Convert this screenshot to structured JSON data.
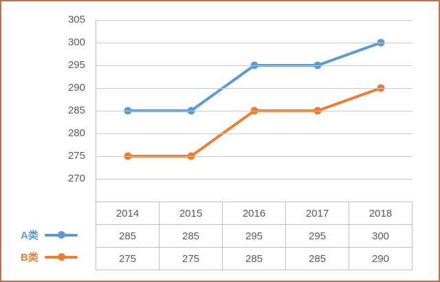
{
  "chart_data": {
    "type": "line",
    "categories": [
      "2014",
      "2015",
      "2016",
      "2017",
      "2018"
    ],
    "series": [
      {
        "name": "A类",
        "values": [
          285,
          285,
          295,
          295,
          300
        ],
        "color": "#5B9BD5"
      },
      {
        "name": "B类",
        "values": [
          275,
          275,
          285,
          285,
          290
        ],
        "color": "#ED7D31"
      }
    ],
    "title": "",
    "xlabel": "",
    "ylabel": "",
    "ylim": [
      265,
      305
    ],
    "yticks": [
      270,
      275,
      280,
      285,
      290,
      295,
      300,
      305
    ],
    "grid": "horizontal",
    "legend_position": "left-of-table-rows",
    "data_table": true
  },
  "colors": {
    "gridline": "#C8C8C8",
    "axis_table_border": "#BFBFBF",
    "tick_text": "#595959",
    "table_text": "#595959",
    "frame_border": "#C0704E",
    "background": "#FFFFFF"
  }
}
